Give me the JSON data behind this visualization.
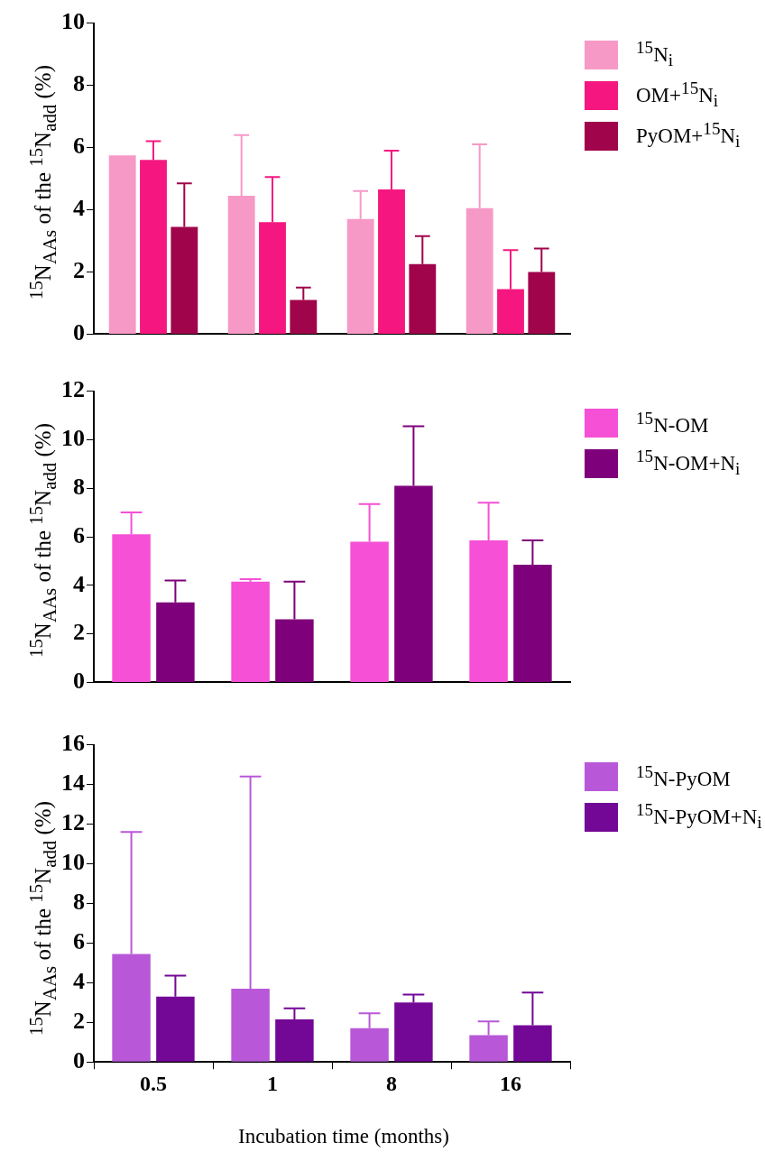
{
  "chart_data": [
    {
      "type": "bar",
      "ylabel": "$^{15}$N$_{AAs}$ of the $^{15}$N$_{add}$ (%)",
      "categories": [
        "0.5",
        "1",
        "8",
        "16"
      ],
      "ylim": [
        0,
        10
      ],
      "yticks": [
        0,
        2,
        4,
        6,
        8,
        10
      ],
      "grid": false,
      "legend": "top right",
      "tick_labels": "y",
      "series": [
        {
          "name": "$^{15}$N$_{i}$",
          "color": "#f799c6",
          "values": [
            5.75,
            4.45,
            3.7,
            4.05
          ],
          "errors": [
            null,
            [
              4.45,
              6.4
            ],
            [
              3.7,
              4.6
            ],
            [
              4.05,
              6.1
            ]
          ]
        },
        {
          "name": "OM+$^{15}$N$_{i}$",
          "color": "#f5177f",
          "values": [
            5.6,
            3.6,
            4.65,
            1.45
          ],
          "errors": [
            [
              5.6,
              6.2
            ],
            [
              3.6,
              5.05
            ],
            [
              4.65,
              5.9
            ],
            [
              1.45,
              2.7
            ]
          ]
        },
        {
          "name": "PyOM+$^{15}$N$_{i}$",
          "color": "#a0044a",
          "values": [
            3.45,
            1.1,
            2.25,
            2.0
          ],
          "errors": [
            [
              3.45,
              4.85
            ],
            [
              1.1,
              1.5
            ],
            [
              2.25,
              3.15
            ],
            [
              2.0,
              2.75
            ]
          ]
        }
      ]
    },
    {
      "type": "bar",
      "ylabel": "$^{15}$N$_{AAs}$ of the $^{15}$N$_{add}$ (%)",
      "categories": [
        "0.5",
        "1",
        "8",
        "16"
      ],
      "ylim": [
        0,
        12
      ],
      "yticks": [
        0,
        2,
        4,
        6,
        8,
        10,
        12
      ],
      "grid": false,
      "legend": "top right",
      "tick_labels": "y",
      "series": [
        {
          "name": "$^{15}$N-OM",
          "color": "#f550d6",
          "values": [
            6.1,
            4.15,
            5.8,
            5.85
          ],
          "errors": [
            [
              6.1,
              7.0
            ],
            [
              4.15,
              4.25
            ],
            [
              5.8,
              7.35
            ],
            [
              5.85,
              7.4
            ]
          ]
        },
        {
          "name": "$^{15}$N-OM+N$_{i}$",
          "color": "#7f007b",
          "values": [
            3.3,
            2.6,
            8.1,
            4.85
          ],
          "errors": [
            [
              3.3,
              4.2
            ],
            [
              2.6,
              4.15
            ],
            [
              8.1,
              10.55
            ],
            [
              4.85,
              5.85
            ]
          ]
        }
      ]
    },
    {
      "type": "bar",
      "ylabel": "$^{15}$N$_{AAs}$ of the $^{15}$N$_{add}$ (%)",
      "xlabel": "Incubation time (months)",
      "categories": [
        "0.5",
        "1",
        "8",
        "16"
      ],
      "ylim": [
        0,
        16
      ],
      "yticks": [
        0,
        2,
        4,
        6,
        8,
        10,
        12,
        14,
        16
      ],
      "grid": false,
      "legend": "top right",
      "series": [
        {
          "name": "$^{15}$N-PyOM",
          "color": "#b858d8",
          "values": [
            5.45,
            3.7,
            1.7,
            1.35
          ],
          "errors": [
            [
              5.45,
              11.6
            ],
            [
              3.7,
              14.4
            ],
            [
              1.7,
              2.45
            ],
            [
              1.35,
              2.05
            ]
          ]
        },
        {
          "name": "$^{15}$N-PyOM+N$_{i}$",
          "color": "#730796",
          "values": [
            3.3,
            2.15,
            3.0,
            1.85
          ],
          "errors": [
            [
              3.3,
              4.35
            ],
            [
              2.15,
              2.7
            ],
            [
              3.0,
              3.4
            ],
            [
              1.85,
              3.5
            ]
          ]
        }
      ]
    }
  ]
}
